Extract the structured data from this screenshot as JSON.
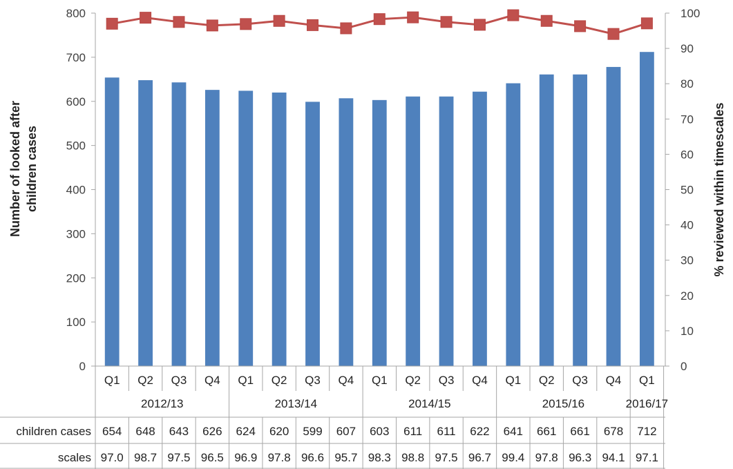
{
  "chart_data": {
    "type": "bar",
    "subtype": "bar-line-combo",
    "categories": [
      "Q1",
      "Q2",
      "Q3",
      "Q4",
      "Q1",
      "Q2",
      "Q3",
      "Q4",
      "Q1",
      "Q2",
      "Q3",
      "Q4",
      "Q1",
      "Q2",
      "Q3",
      "Q4",
      "Q1"
    ],
    "year_groups": [
      {
        "label": "2012/13",
        "count": 4
      },
      {
        "label": "2013/14",
        "count": 4
      },
      {
        "label": "2014/15",
        "count": 4
      },
      {
        "label": "2015/16",
        "count": 4
      },
      {
        "label": "2016/17",
        "count": 1
      }
    ],
    "series": [
      {
        "name": "children cases",
        "type": "bar",
        "axis": "left",
        "color": "#4F81BD",
        "values": [
          654,
          648,
          643,
          626,
          624,
          620,
          599,
          607,
          603,
          611,
          611,
          622,
          641,
          661,
          661,
          678,
          712
        ]
      },
      {
        "name": "scales",
        "type": "line",
        "axis": "right",
        "color": "#C0504D",
        "marker": "square",
        "values": [
          97.0,
          98.7,
          97.5,
          96.5,
          96.9,
          97.8,
          96.6,
          95.7,
          98.3,
          98.8,
          97.5,
          96.7,
          99.4,
          97.8,
          96.3,
          94.1,
          97.1
        ]
      }
    ],
    "ylabel": "Number of looked after children cases",
    "ylabel_lines": [
      "Number of looked after",
      "children cases"
    ],
    "y2label": "% reviewed within timescales",
    "ylim": [
      0,
      800
    ],
    "y_ticks": [
      0,
      100,
      200,
      300,
      400,
      500,
      600,
      700,
      800
    ],
    "y2lim": [
      0,
      100
    ],
    "y2_ticks": [
      0,
      10,
      20,
      30,
      40,
      50,
      60,
      70,
      80,
      90,
      100
    ],
    "grid": false,
    "legend": "data-table"
  }
}
